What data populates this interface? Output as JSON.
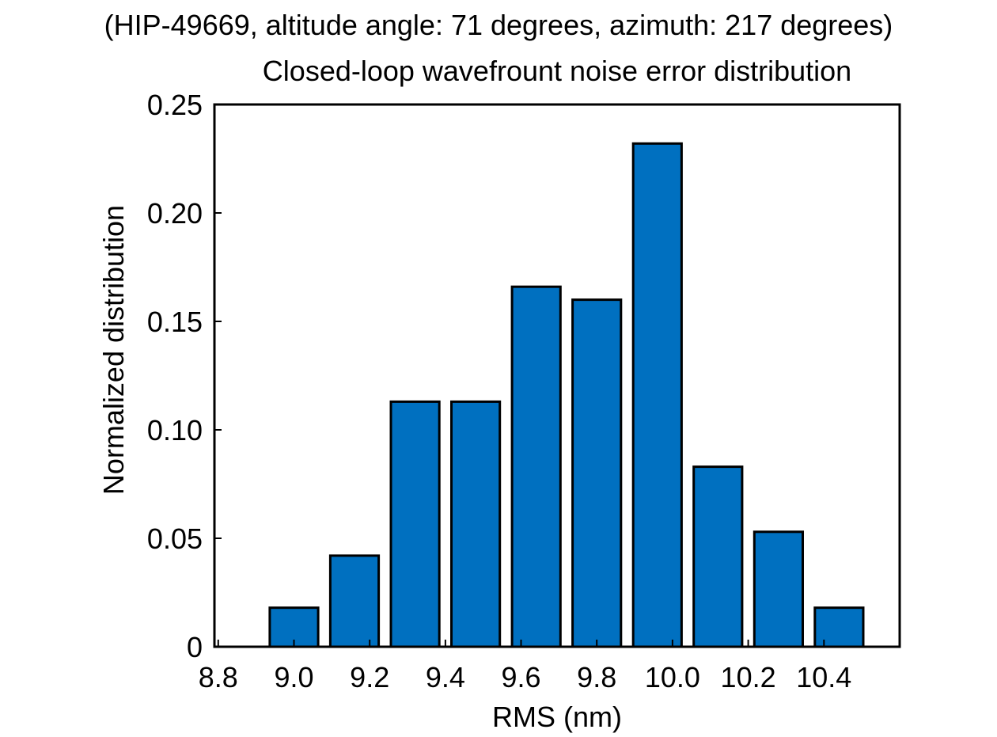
{
  "header": {
    "line1": "(HIP-49669, altitude angle: 71 degrees, azimuth: 217 degrees)",
    "line2": "Closed-loop wavefrount noise error distribution"
  },
  "chart_data": {
    "type": "bar",
    "title": "Closed-loop wavefrount noise error distribution",
    "subtitle": "(HIP-49669, altitude angle: 71 degrees, azimuth: 217 degrees)",
    "xlabel": "RMS (nm)",
    "ylabel": "Normalized distribution",
    "xlim": [
      8.79,
      10.6
    ],
    "ylim": [
      0,
      0.25
    ],
    "x_ticks": [
      8.8,
      9.0,
      9.2,
      9.4,
      9.6,
      9.8,
      10.0,
      10.2,
      10.4
    ],
    "x_tick_labels": [
      "8.8",
      "9.0",
      "9.2",
      "9.4",
      "9.6",
      "9.8",
      "10.0",
      "10.2",
      "10.4"
    ],
    "y_ticks": [
      0,
      0.05,
      0.1,
      0.15,
      0.2,
      0.25
    ],
    "y_tick_labels": [
      "0",
      "0.05",
      "0.10",
      "0.15",
      "0.20",
      "0.25"
    ],
    "bar_width": 0.128,
    "bins": [
      9.0,
      9.16,
      9.32,
      9.48,
      9.64,
      9.8,
      9.96,
      10.12,
      10.28,
      10.44
    ],
    "values": [
      0.018,
      0.042,
      0.113,
      0.113,
      0.166,
      0.16,
      0.232,
      0.083,
      0.053,
      0.018
    ],
    "bar_color": "#0070c0",
    "grid": false
  }
}
